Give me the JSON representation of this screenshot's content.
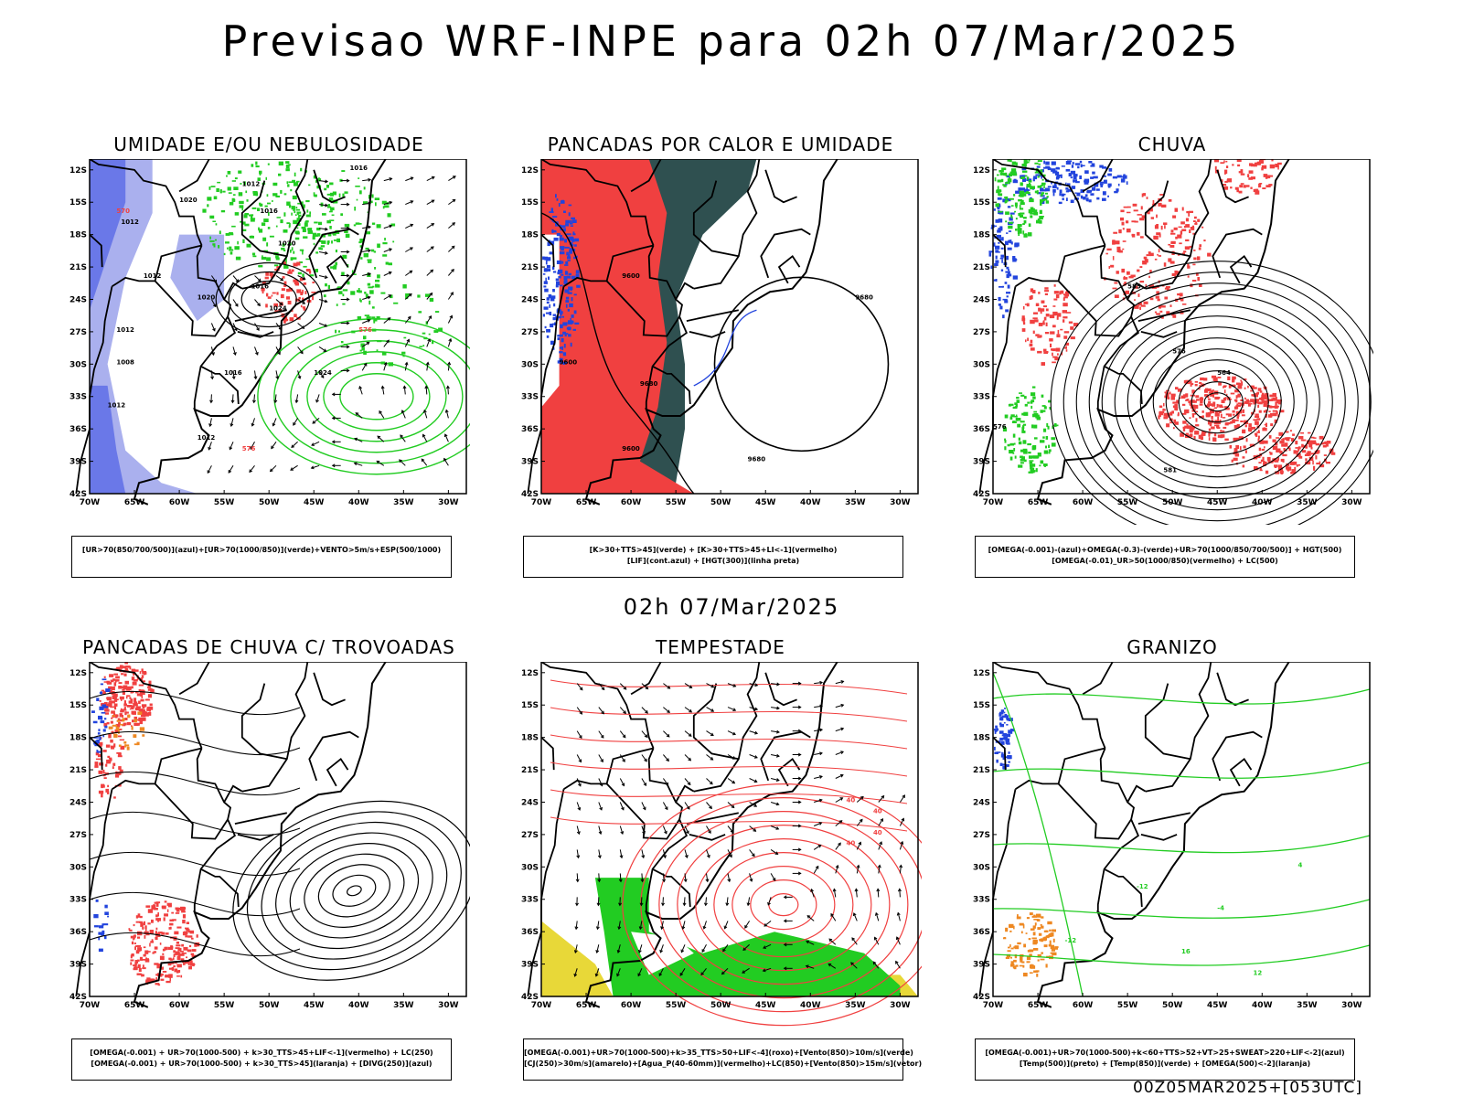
{
  "title": "Previsao WRF-INPE  para 02h 07/Mar/2025",
  "mid_title": "02h 07/Mar/2025",
  "footer": "00Z05MAR2025+[053UTC]",
  "lat_ticks": [
    "12S",
    "15S",
    "18S",
    "21S",
    "24S",
    "27S",
    "30S",
    "33S",
    "36S",
    "39S",
    "42S"
  ],
  "lon_ticks": [
    "70W",
    "65W",
    "60W",
    "55W",
    "50W",
    "45W",
    "40W",
    "35W",
    "30W"
  ],
  "panels": [
    {
      "id": "umidade",
      "title": "UMIDADE E/OU NEBULOSIDADE",
      "legend": [
        "[UR>70(850/700/500)](azul)+[UR>70(1000/850)](verde)+VENTO>5m/s+ESP(500/1000)"
      ],
      "labels": [
        "1016",
        "1012",
        "1016",
        "1020",
        "1012",
        "1020",
        "1016",
        "1024",
        "1012",
        "1020",
        "1008",
        "1012",
        "1016",
        "1012",
        "1024",
        "1012",
        "576",
        "576",
        "570"
      ]
    },
    {
      "id": "pancadas-calor",
      "title": "PANCADAS POR CALOR E UMIDADE",
      "legend": [
        "[K>30+TTS>45](verde) + [K>30+TTS>45+LI<-1](vermelho)",
        "[LIF](cont.azul) + [HGT(300)](linha preta)"
      ],
      "labels": [
        "9600",
        "9680",
        "9680",
        "9600",
        "9600",
        "9680"
      ]
    },
    {
      "id": "chuva",
      "title": "CHUVA",
      "legend": [
        "[OMEGA(-0.001)-(azul)+OMEGA(-0.3)-(verde)+UR>70(1000/850/700/500)] + HGT(500)",
        "[OMEGA(-0.01)_UR>50(1000/850)(vermelho) + LC(500)"
      ],
      "labels": [
        "585",
        "576",
        "564",
        "576",
        "581"
      ]
    },
    {
      "id": "trovoadas",
      "title": "PANCADAS DE CHUVA C/ TROVOADAS",
      "legend": [
        "[OMEGA(-0.001) + UR>70(1000-500) + k>30_TTS>45+LIF<-1](vermelho) + LC(250)",
        "[OMEGA(-0.001) + UR>70(1000-500) + k>30_TTS>45](laranja) + [DIVG(250)](azul)"
      ],
      "labels": []
    },
    {
      "id": "tempestade",
      "title": "TEMPESTADE",
      "legend": [
        "[OMEGA(-0.001)+UR>70(1000-500)+k>35_TTS>50+LIF<-4](roxo)+[Vento(850)>10m/s](verde)",
        "[CJ(250)>30m/s](amarelo)+[Agua_P(40-60mm)](vermelho)+LC(850)+[Vento(850)>15m/s](vetor)"
      ],
      "labels": [
        "40",
        "40",
        "40",
        "40"
      ]
    },
    {
      "id": "granizo",
      "title": "GRANIZO",
      "legend": [
        "[OMEGA(-0.001)+UR>70(1000-500)+k<60+TTS>52+VT>25+SWEAT>220+LIF<-2](azul)",
        "[Temp(500)](preto) + [Temp(850)](verde) + [OMEGA(500)<-2](laranja)"
      ],
      "labels": [
        "-12",
        "-12",
        "-4",
        "4",
        "12",
        "16"
      ]
    }
  ],
  "colors": {
    "red": "#f04040",
    "green": "#22cc22",
    "blue": "#2244dd",
    "lightblue": "#aab0ee",
    "darkteal": "#2f5050",
    "yellow": "#e8d838",
    "orange": "#ee8822"
  }
}
